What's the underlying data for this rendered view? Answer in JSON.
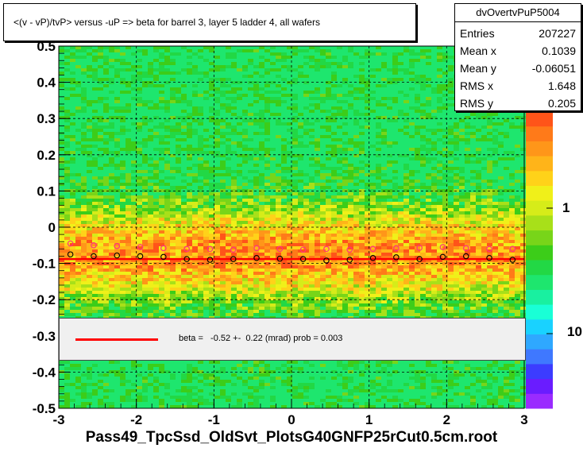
{
  "chart_data": {
    "type": "heatmap",
    "title": "<(v - vP)/tvP> versus  -uP => beta for barrel 3, layer 5 ladder 4, all wafers",
    "xlim": [
      -3,
      3
    ],
    "ylim": [
      -0.5,
      0.5
    ],
    "x_ticks": [
      "-3",
      "-2",
      "-1",
      "0",
      "1",
      "2",
      "3"
    ],
    "y_ticks": [
      "-0.5",
      "-0.4",
      "-0.3",
      "-0.2",
      "-0.1",
      "0",
      "0.1",
      "0.2",
      "0.3",
      "0.4",
      "0.5"
    ],
    "z_scale": "log",
    "z_ticks": [
      "1",
      "10"
    ],
    "grid": true,
    "stats": {
      "name": "dvOvertvPuP5004",
      "entries_label": "Entries",
      "entries": "207227",
      "mean_x_label": "Mean x",
      "mean_x": "0.1039",
      "mean_y_label": "Mean y",
      "mean_y": "-0.06051",
      "rms_x_label": "RMS x",
      "rms_x": "1.648",
      "rms_y_label": "RMS y",
      "rms_y": "0.205"
    },
    "fit_line": {
      "x": [
        -3,
        3
      ],
      "y": [
        -0.088,
        -0.088
      ],
      "color": "#ff0000"
    },
    "profile_black": {
      "x": [
        -2.85,
        -2.55,
        -2.25,
        -1.95,
        -1.65,
        -1.35,
        -1.05,
        -0.75,
        -0.45,
        -0.15,
        0.15,
        0.45,
        0.75,
        1.05,
        1.35,
        1.65,
        1.95,
        2.25,
        2.55,
        2.85
      ],
      "y": [
        -0.075,
        -0.08,
        -0.078,
        -0.08,
        -0.082,
        -0.088,
        -0.09,
        -0.088,
        -0.085,
        -0.087,
        -0.088,
        -0.092,
        -0.09,
        -0.085,
        -0.083,
        -0.088,
        -0.082,
        -0.08,
        -0.085,
        -0.09
      ]
    },
    "profile_magenta": {
      "x": [
        -2.85,
        -2.55,
        -2.25,
        -1.95,
        -1.65,
        -1.35,
        -1.05,
        -0.75,
        -0.45,
        -0.15,
        0.15,
        0.45,
        0.75,
        1.05,
        1.35,
        1.65,
        1.95,
        2.25,
        2.55,
        2.85
      ],
      "y": [
        -0.045,
        -0.05,
        -0.052,
        -0.055,
        -0.058,
        -0.06,
        -0.06,
        -0.062,
        -0.058,
        -0.06,
        -0.062,
        -0.06,
        -0.062,
        -0.06,
        -0.058,
        -0.057,
        -0.055,
        -0.058,
        -0.06,
        -0.06
      ]
    },
    "legend_text": "beta =   -0.52 +-  0.22 (mrad) prob = 0.003",
    "filename": "Pass49_TpcSsd_OldSvt_PlotsG40GNFP25rCut0.5cm.root"
  }
}
